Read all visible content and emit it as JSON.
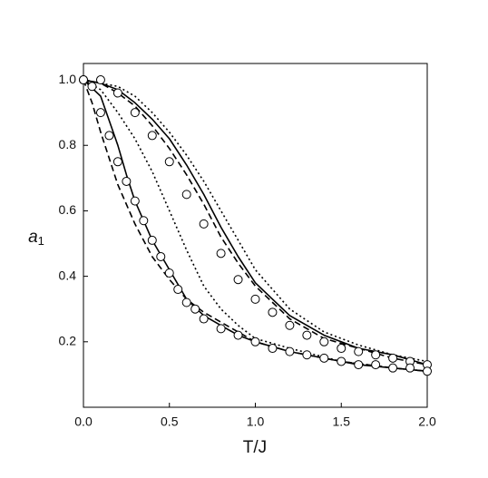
{
  "chart_data": {
    "type": "line",
    "x_label": "T/J",
    "y_label": {
      "symbol": "a",
      "subscript": "1"
    },
    "xlim": [
      0,
      2.0
    ],
    "ylim": [
      0,
      1.05
    ],
    "xticks": [
      {
        "value": 0,
        "label": "0.0"
      },
      0.5,
      {
        "value": 1.0,
        "label": "1.0"
      },
      1.5,
      {
        "value": 2.0,
        "label": "2.0"
      }
    ],
    "yticks": [
      0.2,
      0.4,
      0.6,
      0.8,
      {
        "value": 1.0,
        "label": "1.0"
      }
    ],
    "series": [
      {
        "style": "solid",
        "color": "#000000",
        "x": [
          0,
          0.1,
          0.2,
          0.25,
          0.3,
          0.4,
          0.5,
          0.6,
          0.7,
          0.8,
          0.9,
          1.0,
          1.2,
          1.4,
          1.6,
          1.8,
          2.0
        ],
        "values": [
          1.0,
          0.95,
          0.8,
          0.71,
          0.63,
          0.51,
          0.42,
          0.33,
          0.28,
          0.25,
          0.22,
          0.2,
          0.17,
          0.15,
          0.13,
          0.12,
          0.11
        ]
      },
      {
        "style": "dashed",
        "color": "#000000",
        "x": [
          0,
          0.05,
          0.1,
          0.2,
          0.3,
          0.4,
          0.5,
          0.6,
          0.7,
          0.8,
          1.0,
          1.2,
          1.5,
          1.8,
          2.0
        ],
        "values": [
          1.0,
          0.93,
          0.84,
          0.68,
          0.56,
          0.46,
          0.39,
          0.33,
          0.29,
          0.26,
          0.2,
          0.17,
          0.14,
          0.12,
          0.11
        ]
      },
      {
        "style": "dotted",
        "color": "#000000",
        "x": [
          0,
          0.1,
          0.2,
          0.3,
          0.4,
          0.5,
          0.6,
          0.7,
          0.8,
          0.9,
          1.0,
          1.2,
          1.5,
          1.8,
          2.0
        ],
        "values": [
          1.0,
          0.97,
          0.9,
          0.82,
          0.72,
          0.6,
          0.48,
          0.37,
          0.3,
          0.25,
          0.21,
          0.18,
          0.14,
          0.12,
          0.11
        ]
      },
      {
        "style": "solid",
        "color": "#000000",
        "x": [
          0,
          0.1,
          0.2,
          0.3,
          0.4,
          0.5,
          0.6,
          0.7,
          0.8,
          0.9,
          1.0,
          1.2,
          1.4,
          1.6,
          1.8,
          2.0
        ],
        "values": [
          1.0,
          0.99,
          0.97,
          0.93,
          0.88,
          0.82,
          0.74,
          0.65,
          0.55,
          0.46,
          0.38,
          0.28,
          0.22,
          0.18,
          0.16,
          0.13
        ]
      },
      {
        "style": "dashed",
        "color": "#000000",
        "x": [
          0,
          0.1,
          0.2,
          0.3,
          0.4,
          0.5,
          0.6,
          0.7,
          0.8,
          0.9,
          1.0,
          1.2,
          1.4,
          1.6,
          1.8,
          2.0
        ],
        "values": [
          1.0,
          0.99,
          0.96,
          0.92,
          0.86,
          0.79,
          0.71,
          0.62,
          0.52,
          0.44,
          0.37,
          0.27,
          0.21,
          0.18,
          0.15,
          0.13
        ]
      },
      {
        "style": "dotted",
        "color": "#000000",
        "x": [
          0,
          0.1,
          0.2,
          0.3,
          0.4,
          0.5,
          0.6,
          0.7,
          0.8,
          0.9,
          1.0,
          1.2,
          1.4,
          1.6,
          1.8,
          2.0
        ],
        "values": [
          1.0,
          0.99,
          0.98,
          0.95,
          0.9,
          0.84,
          0.77,
          0.69,
          0.6,
          0.51,
          0.42,
          0.3,
          0.23,
          0.19,
          0.16,
          0.14
        ]
      },
      {
        "style": "markers",
        "color": "#000000",
        "x": [
          0,
          0.1,
          0.2,
          0.3,
          0.4,
          0.5,
          0.6,
          0.7,
          0.8,
          0.9,
          1.0,
          1.1,
          1.2,
          1.3,
          1.4,
          1.5,
          1.6,
          1.7,
          1.8,
          1.9,
          2.0
        ],
        "values": [
          1.0,
          1.0,
          0.96,
          0.9,
          0.83,
          0.75,
          0.65,
          0.56,
          0.47,
          0.39,
          0.33,
          0.29,
          0.25,
          0.22,
          0.2,
          0.18,
          0.17,
          0.16,
          0.15,
          0.14,
          0.13
        ]
      },
      {
        "style": "markers",
        "color": "#000000",
        "x": [
          0,
          0.05,
          0.1,
          0.15,
          0.2,
          0.25,
          0.3,
          0.35,
          0.4,
          0.45,
          0.5,
          0.55,
          0.6,
          0.65,
          0.7,
          0.8,
          0.9,
          1.0,
          1.1,
          1.2,
          1.3,
          1.4,
          1.5,
          1.6,
          1.7,
          1.8,
          1.9,
          2.0
        ],
        "values": [
          1.0,
          0.98,
          0.9,
          0.83,
          0.75,
          0.69,
          0.63,
          0.57,
          0.51,
          0.46,
          0.41,
          0.36,
          0.32,
          0.3,
          0.27,
          0.24,
          0.22,
          0.2,
          0.18,
          0.17,
          0.16,
          0.15,
          0.14,
          0.13,
          0.13,
          0.12,
          0.12,
          0.11
        ]
      }
    ]
  }
}
